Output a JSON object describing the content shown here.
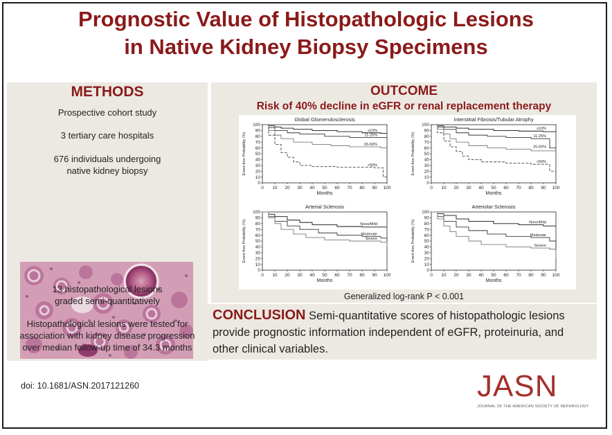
{
  "title_line1": "Prognostic Value of Histopathologic Lesions",
  "title_line2": "in Native Kidney Biopsy Specimens",
  "methods": {
    "heading": "METHODS",
    "item1": "Prospective cohort study",
    "item2": "3 tertiary care hospitals",
    "item3_l1": "676 individuals undergoing",
    "item3_l2": "native kidney biopsy",
    "item4_l1": "13 histopathological lesions",
    "item4_l2": "graded semi-quantitatively",
    "item5_l1": "Histopathological lesions were tested for",
    "item5_l2": "association with kidney disease progression",
    "item5_l3": "over median follow-up time of 34.3 months"
  },
  "outcome": {
    "heading": "OUTCOME",
    "subheading": "Risk of 40% decline in eGFR or renal replacement therapy",
    "pvalue": "Generalized log-rank P < 0.001"
  },
  "conclusion": {
    "heading": "CONCLUSION",
    "text": "Semi-quantitative scores of histopathologic lesions provide prognostic information independent of eGFR, proteinuria, and other clinical variables."
  },
  "doi": "doi: 10.1681/ASN.2017121260",
  "jasn": {
    "logo": "JASN",
    "subtitle": "JOURNAL OF THE AMERICAN SOCIETY OF NEPHROLOGY"
  },
  "chart_data": [
    {
      "type": "line",
      "title": "Global Glomerulosclerosis",
      "xlabel": "Months",
      "ylabel": "Event-free Probability (%)",
      "xlim": [
        0,
        100
      ],
      "ylim": [
        0,
        100
      ],
      "xticks": [
        0,
        10,
        20,
        30,
        40,
        50,
        60,
        70,
        80,
        90,
        100
      ],
      "yticks": [
        0,
        10,
        20,
        30,
        40,
        50,
        60,
        70,
        80,
        90,
        100
      ],
      "series": [
        {
          "name": "≤10%",
          "x": [
            0,
            5,
            10,
            15,
            25,
            40,
            60,
            80,
            95,
            100
          ],
          "y": [
            100,
            98,
            96,
            94,
            92,
            90,
            88,
            86,
            85,
            85
          ]
        },
        {
          "name": "11-25%",
          "x": [
            0,
            5,
            10,
            20,
            30,
            50,
            70,
            90,
            100
          ],
          "y": [
            100,
            95,
            90,
            86,
            84,
            80,
            78,
            78,
            78
          ]
        },
        {
          "name": "26-50%",
          "x": [
            0,
            5,
            10,
            15,
            25,
            40,
            55,
            70,
            95,
            100
          ],
          "y": [
            100,
            90,
            82,
            76,
            70,
            66,
            64,
            62,
            60,
            60
          ]
        },
        {
          "name": ">50%",
          "x": [
            0,
            5,
            10,
            15,
            20,
            25,
            30,
            40,
            60,
            90,
            97,
            100
          ],
          "y": [
            100,
            82,
            66,
            52,
            44,
            36,
            30,
            28,
            27,
            26,
            10,
            0
          ]
        }
      ]
    },
    {
      "type": "line",
      "title": "Interstitial Fibrosis/Tubular Atrophy",
      "xlabel": "Months",
      "ylabel": "Event-free Probability (%)",
      "xlim": [
        0,
        100
      ],
      "ylim": [
        0,
        100
      ],
      "xticks": [
        0,
        10,
        20,
        30,
        40,
        50,
        60,
        70,
        80,
        90,
        100
      ],
      "yticks": [
        0,
        10,
        20,
        30,
        40,
        50,
        60,
        70,
        80,
        90,
        100
      ],
      "series": [
        {
          "name": "≤10%",
          "x": [
            0,
            5,
            10,
            20,
            30,
            50,
            70,
            90,
            100
          ],
          "y": [
            100,
            98,
            96,
            94,
            92,
            90,
            89,
            88,
            88
          ]
        },
        {
          "name": "11-25%",
          "x": [
            0,
            5,
            10,
            20,
            30,
            45,
            60,
            80,
            95,
            100
          ],
          "y": [
            100,
            96,
            92,
            86,
            82,
            80,
            78,
            76,
            60,
            60
          ]
        },
        {
          "name": "26-50%",
          "x": [
            0,
            5,
            10,
            15,
            20,
            30,
            45,
            60,
            80,
            100
          ],
          "y": [
            100,
            92,
            84,
            76,
            70,
            64,
            60,
            58,
            55,
            55
          ]
        },
        {
          "name": ">50%",
          "x": [
            0,
            5,
            10,
            15,
            20,
            25,
            30,
            40,
            60,
            80,
            95,
            100
          ],
          "y": [
            100,
            86,
            72,
            62,
            54,
            46,
            40,
            36,
            34,
            32,
            20,
            15
          ]
        }
      ]
    },
    {
      "type": "line",
      "title": "Arterial Sclerosis",
      "xlabel": "Months",
      "ylabel": "Event-free Probability (%)",
      "xlim": [
        0,
        100
      ],
      "ylim": [
        0,
        100
      ],
      "xticks": [
        0,
        10,
        20,
        30,
        40,
        50,
        60,
        70,
        80,
        90,
        100
      ],
      "yticks": [
        0,
        10,
        20,
        30,
        40,
        50,
        60,
        70,
        80,
        90,
        100
      ],
      "series": [
        {
          "name": "None/Mild",
          "x": [
            0,
            5,
            10,
            20,
            30,
            40,
            60,
            80,
            100
          ],
          "y": [
            100,
            96,
            92,
            86,
            82,
            78,
            75,
            74,
            74
          ]
        },
        {
          "name": "Moderate",
          "x": [
            0,
            5,
            10,
            20,
            30,
            45,
            60,
            80,
            95,
            100
          ],
          "y": [
            100,
            92,
            84,
            76,
            70,
            64,
            60,
            58,
            55,
            50
          ]
        },
        {
          "name": "Severe",
          "x": [
            0,
            5,
            10,
            15,
            25,
            35,
            50,
            70,
            95,
            100
          ],
          "y": [
            100,
            90,
            80,
            70,
            62,
            56,
            52,
            50,
            48,
            40
          ]
        }
      ]
    },
    {
      "type": "line",
      "title": "Arteriolar Sclerosis",
      "xlabel": "Months",
      "ylabel": "Event-free Probability (%)",
      "xlim": [
        0,
        100
      ],
      "ylim": [
        0,
        100
      ],
      "xticks": [
        0,
        10,
        20,
        30,
        40,
        50,
        60,
        70,
        80,
        90,
        100
      ],
      "yticks": [
        0,
        10,
        20,
        30,
        40,
        50,
        60,
        70,
        80,
        90,
        100
      ],
      "series": [
        {
          "name": "None/Mild",
          "x": [
            0,
            5,
            10,
            20,
            30,
            50,
            70,
            90,
            100
          ],
          "y": [
            100,
            97,
            94,
            88,
            84,
            80,
            78,
            76,
            76
          ]
        },
        {
          "name": "Moderate",
          "x": [
            0,
            5,
            10,
            20,
            30,
            45,
            60,
            80,
            95,
            100
          ],
          "y": [
            100,
            92,
            84,
            74,
            68,
            62,
            58,
            56,
            50,
            25
          ]
        },
        {
          "name": "Severe",
          "x": [
            0,
            5,
            10,
            15,
            20,
            30,
            40,
            60,
            80,
            95,
            100
          ],
          "y": [
            100,
            88,
            76,
            66,
            58,
            50,
            44,
            40,
            38,
            36,
            20
          ]
        }
      ]
    }
  ],
  "colors": {
    "accent_red": "#8b1a1a",
    "panel_bg": "#ece9e2",
    "jasn_red": "#a2302c"
  }
}
